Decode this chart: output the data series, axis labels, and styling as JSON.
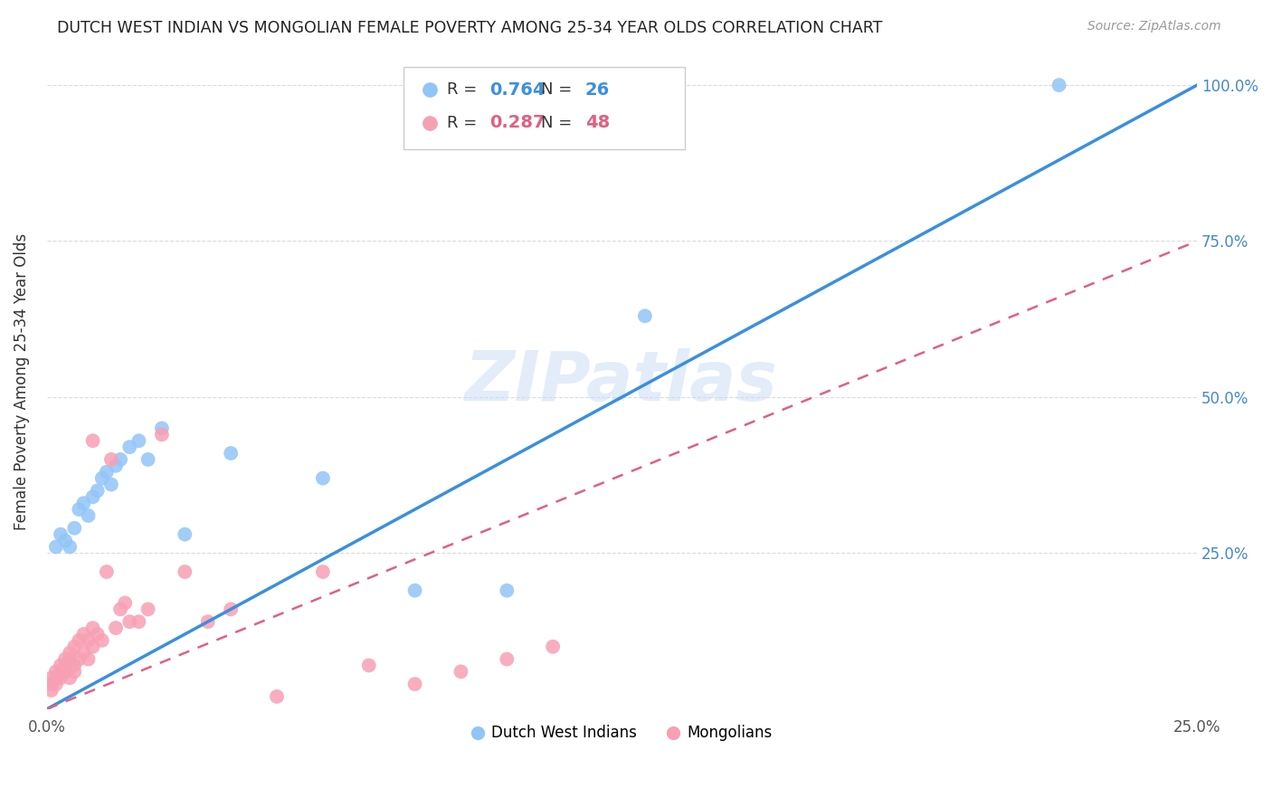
{
  "title": "DUTCH WEST INDIAN VS MONGOLIAN FEMALE POVERTY AMONG 25-34 YEAR OLDS CORRELATION CHART",
  "source": "Source: ZipAtlas.com",
  "ylabel": "Female Poverty Among 25-34 Year Olds",
  "xlim": [
    0.0,
    0.25
  ],
  "ylim": [
    0.0,
    1.05
  ],
  "xticks": [
    0.0,
    0.05,
    0.1,
    0.15,
    0.2,
    0.25
  ],
  "yticks": [
    0.0,
    0.25,
    0.5,
    0.75,
    1.0
  ],
  "xticklabels": [
    "0.0%",
    "",
    "",
    "",
    "",
    "25.0%"
  ],
  "yticklabels": [
    "",
    "25.0%",
    "50.0%",
    "75.0%",
    "100.0%"
  ],
  "blue_R": 0.764,
  "blue_N": 26,
  "pink_R": 0.287,
  "pink_N": 48,
  "blue_color": "#92c5f7",
  "pink_color": "#f7a0b4",
  "blue_line_color": "#3b8fde",
  "pink_line_color": "#e06080",
  "grid_color": "#cccccc",
  "watermark": "ZIPatlas",
  "legend_label_blue": "Dutch West Indians",
  "legend_label_pink": "Mongolians",
  "blue_scatter_x": [
    0.002,
    0.003,
    0.004,
    0.005,
    0.006,
    0.007,
    0.008,
    0.009,
    0.01,
    0.011,
    0.012,
    0.013,
    0.014,
    0.015,
    0.016,
    0.018,
    0.02,
    0.022,
    0.025,
    0.03,
    0.04,
    0.06,
    0.08,
    0.1,
    0.13,
    0.22
  ],
  "blue_scatter_y": [
    0.26,
    0.28,
    0.27,
    0.26,
    0.29,
    0.32,
    0.33,
    0.31,
    0.34,
    0.35,
    0.37,
    0.38,
    0.36,
    0.39,
    0.4,
    0.42,
    0.43,
    0.4,
    0.45,
    0.28,
    0.41,
    0.37,
    0.19,
    0.19,
    0.63,
    1.0
  ],
  "pink_scatter_x": [
    0.001,
    0.001,
    0.001,
    0.002,
    0.002,
    0.002,
    0.003,
    0.003,
    0.003,
    0.004,
    0.004,
    0.004,
    0.005,
    0.005,
    0.005,
    0.006,
    0.006,
    0.006,
    0.007,
    0.007,
    0.008,
    0.008,
    0.009,
    0.009,
    0.01,
    0.01,
    0.01,
    0.011,
    0.012,
    0.013,
    0.014,
    0.015,
    0.016,
    0.017,
    0.018,
    0.02,
    0.022,
    0.025,
    0.03,
    0.035,
    0.04,
    0.05,
    0.06,
    0.07,
    0.08,
    0.09,
    0.1,
    0.11
  ],
  "pink_scatter_y": [
    0.05,
    0.04,
    0.03,
    0.06,
    0.05,
    0.04,
    0.07,
    0.06,
    0.05,
    0.08,
    0.07,
    0.06,
    0.09,
    0.08,
    0.05,
    0.1,
    0.07,
    0.06,
    0.11,
    0.08,
    0.12,
    0.09,
    0.11,
    0.08,
    0.13,
    0.1,
    0.43,
    0.12,
    0.11,
    0.22,
    0.4,
    0.13,
    0.16,
    0.17,
    0.14,
    0.14,
    0.16,
    0.44,
    0.22,
    0.14,
    0.16,
    0.02,
    0.22,
    0.07,
    0.04,
    0.06,
    0.08,
    0.1
  ],
  "blue_line_x0": 0.0,
  "blue_line_y0": 0.0,
  "blue_line_x1": 0.25,
  "blue_line_y1": 1.0,
  "pink_line_x0": 0.0,
  "pink_line_y0": 0.0,
  "pink_line_x1": 0.25,
  "pink_line_y1": 0.75
}
